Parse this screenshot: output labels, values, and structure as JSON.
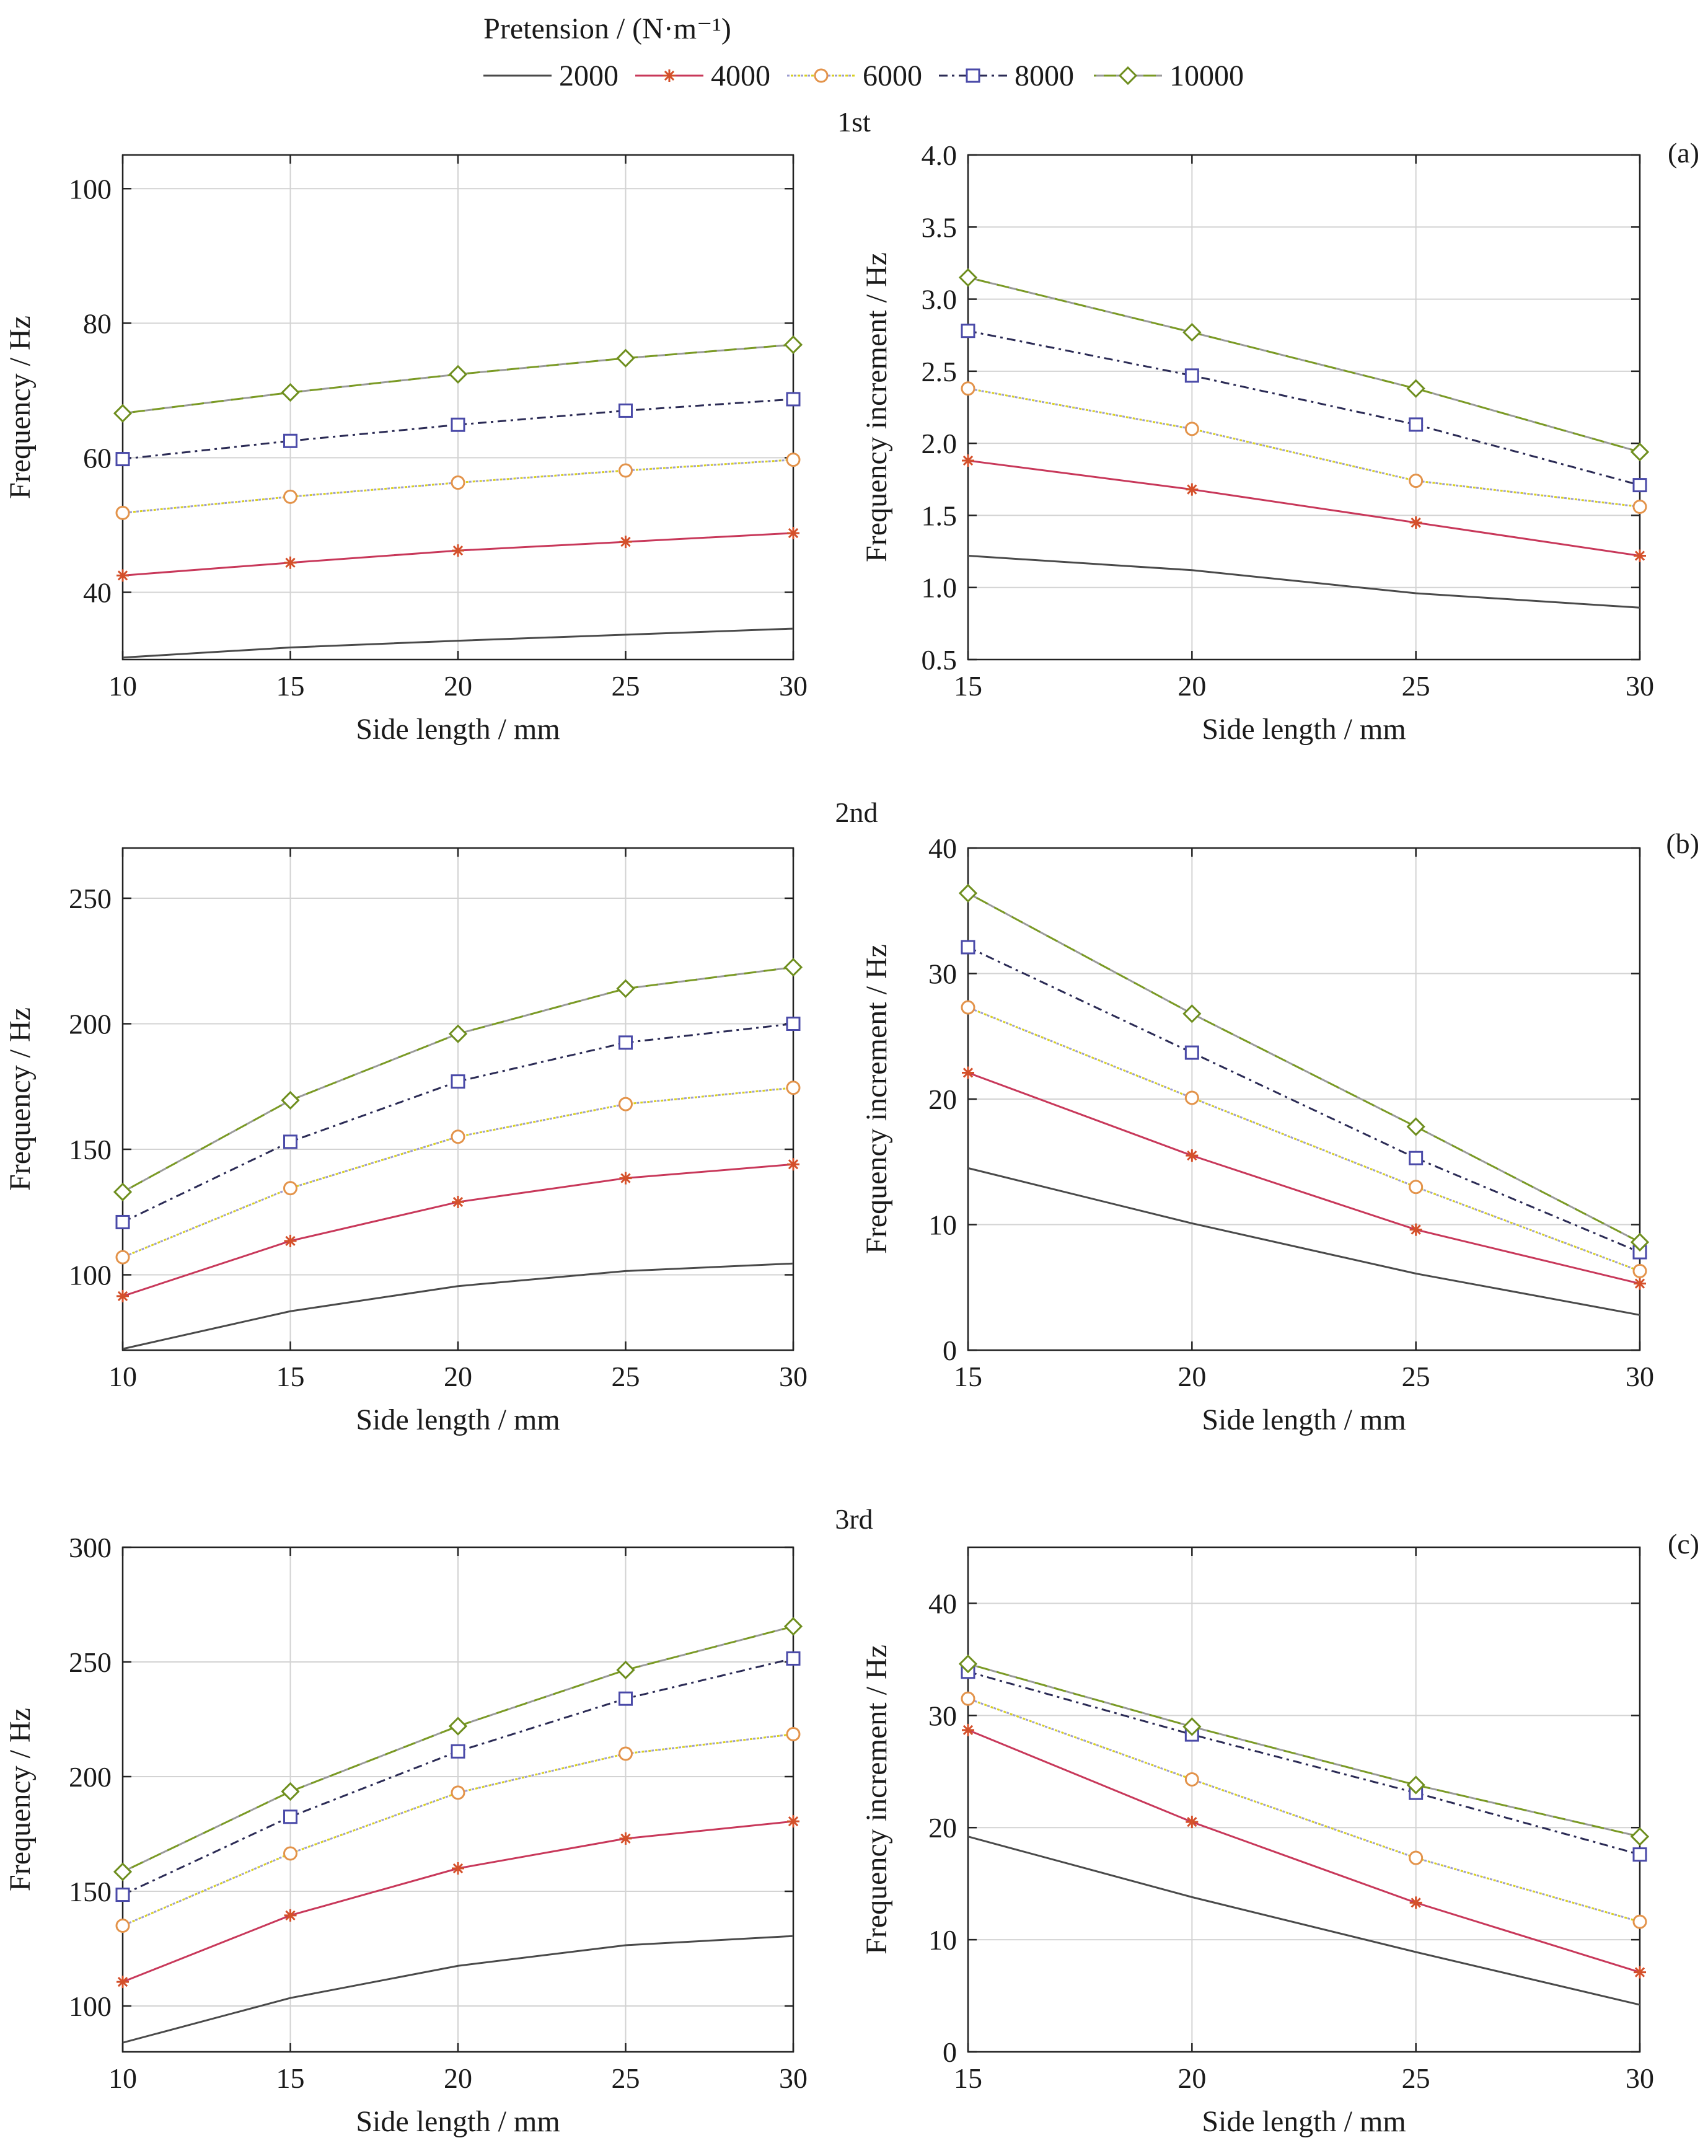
{
  "legend": {
    "title": "Pretension / (N·m⁻¹)",
    "entries": [
      {
        "label": "2000",
        "color": "#4a4a4a",
        "marker": "none",
        "dash": "solid",
        "markerColor": "#4a4a4a"
      },
      {
        "label": "4000",
        "color": "#c8385a",
        "marker": "star",
        "dash": "solid",
        "markerColor": "#d4502a"
      },
      {
        "label": "6000",
        "color": "#9c9ccf",
        "marker": "circle",
        "dash": "dotted",
        "markerColor": "#e3934a",
        "lineColor2": "#d8d020"
      },
      {
        "label": "8000",
        "color": "#2b2b55",
        "marker": "square",
        "dash": "dashdot",
        "markerColor": "#4a4aa8"
      },
      {
        "label": "10000",
        "color": "#9a9a9a",
        "marker": "diamond",
        "dash": "dashed",
        "markerColor": "#6e8e1e",
        "lineColor2": "#7a9a24"
      }
    ]
  },
  "rows": [
    {
      "title": "1st",
      "panel_label": "(a)"
    },
    {
      "title": "2nd",
      "panel_label": "(b)"
    },
    {
      "title": "3rd",
      "panel_label": "(c)"
    }
  ],
  "chart_data": [
    {
      "id": "a-left",
      "type": "line",
      "xlabel": "Side length / mm",
      "ylabel": "Frequency / Hz",
      "x": [
        10,
        15,
        20,
        25,
        30
      ],
      "xlim": [
        10,
        30
      ],
      "ylim": [
        30,
        105
      ],
      "xticks": [
        10,
        15,
        20,
        25,
        30
      ],
      "yticks": [
        40,
        60,
        80,
        100
      ],
      "grid": true,
      "series": [
        {
          "name": "2000",
          "values": [
            30.3,
            31.8,
            32.8,
            33.7,
            34.6
          ]
        },
        {
          "name": "4000",
          "values": [
            42.5,
            44.4,
            46.2,
            47.5,
            48.8
          ]
        },
        {
          "name": "6000",
          "values": [
            51.8,
            54.2,
            56.3,
            58.1,
            59.7
          ]
        },
        {
          "name": "8000",
          "values": [
            59.8,
            62.5,
            64.9,
            67.0,
            68.7
          ]
        },
        {
          "name": "10000",
          "values": [
            66.6,
            69.7,
            72.4,
            74.8,
            76.8
          ]
        }
      ]
    },
    {
      "id": "a-right",
      "type": "line",
      "xlabel": "Side length / mm",
      "ylabel": "Frequency increment / Hz",
      "x": [
        15,
        20,
        25,
        30
      ],
      "xlim": [
        15,
        30
      ],
      "ylim": [
        0.5,
        4.0
      ],
      "xticks": [
        15,
        20,
        25,
        30
      ],
      "yticks": [
        0.5,
        1.0,
        1.5,
        2.0,
        2.5,
        3.0,
        3.5,
        4.0
      ],
      "ytick_labels": [
        "0.5",
        "1.0",
        "1.5",
        "2.0",
        "2.5",
        "3.0",
        "3.5",
        "4.0"
      ],
      "grid": true,
      "series": [
        {
          "name": "2000",
          "values": [
            1.22,
            1.12,
            0.96,
            0.86
          ]
        },
        {
          "name": "4000",
          "values": [
            1.88,
            1.68,
            1.45,
            1.22
          ]
        },
        {
          "name": "6000",
          "values": [
            2.38,
            2.1,
            1.74,
            1.56
          ]
        },
        {
          "name": "8000",
          "values": [
            2.78,
            2.47,
            2.13,
            1.71
          ]
        },
        {
          "name": "10000",
          "values": [
            3.15,
            2.77,
            2.38,
            1.94
          ]
        }
      ]
    },
    {
      "id": "b-left",
      "type": "line",
      "xlabel": "Side length / mm",
      "ylabel": "Frequency / Hz",
      "x": [
        10,
        15,
        20,
        25,
        30
      ],
      "xlim": [
        10,
        30
      ],
      "ylim": [
        70,
        270
      ],
      "xticks": [
        10,
        15,
        20,
        25,
        30
      ],
      "yticks": [
        100,
        150,
        200,
        250
      ],
      "grid": true,
      "series": [
        {
          "name": "2000",
          "values": [
            70.5,
            85.5,
            95.5,
            101.5,
            104.5
          ]
        },
        {
          "name": "4000",
          "values": [
            91.5,
            113.5,
            129.0,
            138.5,
            144.0
          ]
        },
        {
          "name": "6000",
          "values": [
            107.0,
            134.5,
            155.0,
            168.0,
            174.5
          ]
        },
        {
          "name": "8000",
          "values": [
            121.0,
            153.0,
            177.0,
            192.5,
            200.0
          ]
        },
        {
          "name": "10000",
          "values": [
            133.0,
            169.5,
            196.0,
            214.0,
            222.5
          ]
        }
      ]
    },
    {
      "id": "b-right",
      "type": "line",
      "xlabel": "Side length / mm",
      "ylabel": "Frequency increment / Hz",
      "x": [
        15,
        20,
        25,
        30
      ],
      "xlim": [
        15,
        30
      ],
      "ylim": [
        0,
        40
      ],
      "xticks": [
        15,
        20,
        25,
        30
      ],
      "yticks": [
        0,
        10,
        20,
        30,
        40
      ],
      "grid": true,
      "series": [
        {
          "name": "2000",
          "values": [
            14.5,
            10.1,
            6.1,
            2.8
          ]
        },
        {
          "name": "4000",
          "values": [
            22.1,
            15.5,
            9.6,
            5.3
          ]
        },
        {
          "name": "6000",
          "values": [
            27.3,
            20.1,
            13.0,
            6.3
          ]
        },
        {
          "name": "8000",
          "values": [
            32.1,
            23.7,
            15.3,
            7.8
          ]
        },
        {
          "name": "10000",
          "values": [
            36.4,
            26.8,
            17.8,
            8.6
          ]
        }
      ]
    },
    {
      "id": "c-left",
      "type": "line",
      "xlabel": "Side length / mm",
      "ylabel": "Frequency / Hz",
      "x": [
        10,
        15,
        20,
        25,
        30
      ],
      "xlim": [
        10,
        30
      ],
      "ylim": [
        80,
        300
      ],
      "xticks": [
        10,
        15,
        20,
        25,
        30
      ],
      "yticks": [
        100,
        150,
        200,
        250,
        300
      ],
      "grid": true,
      "series": [
        {
          "name": "2000",
          "values": [
            84.0,
            103.5,
            117.5,
            126.5,
            130.5
          ]
        },
        {
          "name": "4000",
          "values": [
            110.5,
            139.5,
            160.0,
            173.0,
            180.5
          ]
        },
        {
          "name": "6000",
          "values": [
            135.0,
            166.5,
            193.0,
            210.0,
            218.5
          ]
        },
        {
          "name": "8000",
          "values": [
            148.5,
            182.5,
            211.0,
            234.0,
            251.5
          ]
        },
        {
          "name": "10000",
          "values": [
            158.5,
            193.5,
            222.0,
            246.5,
            265.5
          ]
        }
      ]
    },
    {
      "id": "c-right",
      "type": "line",
      "xlabel": "Side length / mm",
      "ylabel": "Frequency increment / Hz",
      "x": [
        15,
        20,
        25,
        30
      ],
      "xlim": [
        15,
        30
      ],
      "ylim": [
        0,
        45
      ],
      "xticks": [
        15,
        20,
        25,
        30
      ],
      "yticks": [
        0,
        10,
        20,
        30,
        40
      ],
      "grid": true,
      "series": [
        {
          "name": "2000",
          "values": [
            19.2,
            13.8,
            8.9,
            4.2
          ]
        },
        {
          "name": "4000",
          "values": [
            28.7,
            20.5,
            13.3,
            7.1
          ]
        },
        {
          "name": "6000",
          "values": [
            31.5,
            24.3,
            17.3,
            11.6
          ]
        },
        {
          "name": "8000",
          "values": [
            33.9,
            28.3,
            23.1,
            17.6
          ]
        },
        {
          "name": "10000",
          "values": [
            34.6,
            29.0,
            23.8,
            19.2
          ]
        }
      ]
    }
  ]
}
